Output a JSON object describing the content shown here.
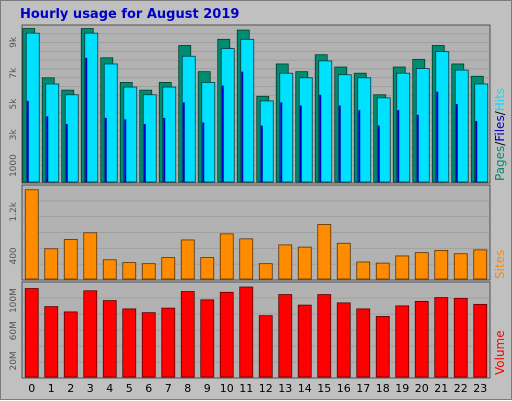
{
  "window": {
    "title": "Hourly usage for August 2019"
  },
  "colors": {
    "background": "#c0c0c0",
    "plot_background": "#b2b2b2",
    "grid": "#a0a0a0",
    "title": "#0000c8",
    "pages": "#008c6e",
    "files": "#0000c8",
    "hits": "#00e1ff",
    "sites": "#ff8c00",
    "volume": "#ff0000"
  },
  "chart_data": [
    {
      "type": "bar",
      "title": "Hourly usage for August 2019",
      "categories": [
        "0",
        "1",
        "2",
        "3",
        "4",
        "5",
        "6",
        "7",
        "8",
        "9",
        "10",
        "11",
        "12",
        "13",
        "14",
        "15",
        "16",
        "17",
        "18",
        "19",
        "20",
        "21",
        "22",
        "23"
      ],
      "series": [
        {
          "name": "Pages",
          "values": [
            9900,
            6700,
            5900,
            9900,
            8000,
            6400,
            5900,
            6400,
            8800,
            7100,
            9200,
            9800,
            5500,
            7600,
            7100,
            8200,
            7400,
            7000,
            5600,
            7400,
            7900,
            8800,
            7600,
            6800
          ]
        },
        {
          "name": "Files",
          "values": [
            5200,
            4200,
            3700,
            8000,
            4100,
            4000,
            3700,
            4100,
            5100,
            3800,
            6200,
            7100,
            3600,
            5100,
            4900,
            5600,
            4900,
            4600,
            3600,
            4600,
            4300,
            5800,
            5000,
            3900
          ]
        },
        {
          "name": "Hits",
          "values": [
            9600,
            6300,
            5600,
            9600,
            7600,
            6100,
            5600,
            6100,
            8100,
            6400,
            8600,
            9200,
            5200,
            7000,
            6700,
            7800,
            6900,
            6700,
            5400,
            7000,
            7300,
            8400,
            7200,
            6300
          ]
        }
      ],
      "y_ticks": [
        "1000",
        "3k",
        "5k",
        "7k",
        "9k"
      ],
      "ylim": [
        0,
        10000
      ],
      "legend": "right",
      "grid": true
    },
    {
      "type": "bar",
      "categories": [
        "0",
        "1",
        "2",
        "3",
        "4",
        "5",
        "6",
        "7",
        "8",
        "9",
        "10",
        "11",
        "12",
        "13",
        "14",
        "15",
        "16",
        "17",
        "18",
        "19",
        "20",
        "21",
        "22",
        "23"
      ],
      "series": [
        {
          "name": "Sites",
          "values": [
            1600,
            530,
            700,
            820,
            330,
            280,
            260,
            370,
            690,
            370,
            800,
            710,
            260,
            600,
            560,
            970,
            630,
            290,
            270,
            400,
            460,
            500,
            440,
            510
          ]
        }
      ],
      "y_ticks": [
        "400",
        "1.2k"
      ],
      "ylim": [
        0,
        1650
      ],
      "legend": "right",
      "grid": true
    },
    {
      "type": "bar",
      "categories": [
        "0",
        "1",
        "2",
        "3",
        "4",
        "5",
        "6",
        "7",
        "8",
        "9",
        "10",
        "11",
        "12",
        "13",
        "14",
        "15",
        "16",
        "17",
        "18",
        "19",
        "20",
        "21",
        "22",
        "23"
      ],
      "series": [
        {
          "name": "Volume",
          "values": [
            116,
            92,
            85,
            113,
            100,
            89,
            84,
            90,
            112,
            101,
            111,
            118,
            80,
            108,
            94,
            108,
            97,
            89,
            79,
            93,
            99,
            104,
            103,
            95
          ]
        }
      ],
      "y_ticks": [
        "20M",
        "60M",
        "100M"
      ],
      "ylim": [
        0,
        122
      ],
      "legend": "right",
      "grid": true
    }
  ],
  "legend_labels": {
    "pages": "Pages",
    "sep1": "/",
    "files": "Files",
    "sep2": "/",
    "hits": "Hits",
    "sites": "Sites",
    "volume": "Volume"
  }
}
